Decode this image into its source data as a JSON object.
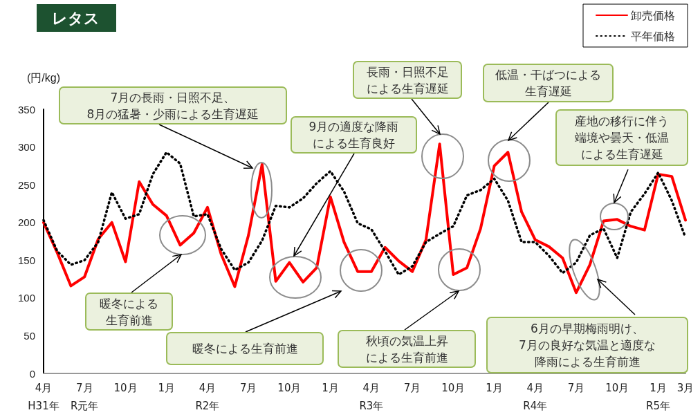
{
  "chart_data": {
    "type": "line",
    "title": "レタス",
    "ylabel": "(円/kg)",
    "categories": [
      "4月\nH31年",
      null,
      null,
      "7月\nR元年",
      null,
      null,
      "10月",
      null,
      null,
      "1月",
      null,
      null,
      "4月\nR2年",
      null,
      null,
      "7月",
      null,
      null,
      "10月",
      null,
      null,
      "1月",
      null,
      null,
      "4月\nR3年",
      null,
      null,
      "7月",
      null,
      null,
      "10月",
      null,
      null,
      "1月",
      null,
      null,
      "4月\nR4年",
      null,
      null,
      "7月",
      null,
      null,
      "10月",
      null,
      null,
      "1月\nR5年",
      null,
      "3月"
    ],
    "series": [
      {
        "name": "卸売価格",
        "color": "#ff0000",
        "line_style": "solid",
        "values": [
          200,
          160,
          116,
          128,
          178,
          200,
          148,
          254,
          224,
          209,
          170,
          186,
          220,
          158,
          115,
          183,
          277,
          122,
          147,
          121,
          140,
          234,
          174,
          135,
          135,
          167,
          149,
          135,
          177,
          304,
          131,
          140,
          192,
          275,
          293,
          214,
          177,
          168,
          153,
          107,
          144,
          202,
          204,
          195,
          190,
          264,
          261,
          203
        ]
      },
      {
        "name": "平年価格",
        "color": "#000000",
        "line_style": "dotted",
        "values": [
          203,
          162,
          144,
          150,
          174,
          240,
          205,
          211,
          264,
          293,
          278,
          208,
          211,
          165,
          137,
          147,
          176,
          222,
          220,
          232,
          252,
          268,
          241,
          199,
          191,
          162,
          131,
          142,
          174,
          185,
          195,
          236,
          243,
          258,
          229,
          174,
          174,
          156,
          133,
          147,
          183,
          192,
          153,
          214,
          238,
          266,
          229,
          180
        ]
      }
    ],
    "ylim": [
      0,
      350
    ],
    "yticks": [
      0,
      50,
      100,
      150,
      200,
      250,
      300,
      350
    ],
    "grid": false,
    "legend": "top right",
    "annotations": [
      "7月の長雨・日照不足、8月の猛暑・少雨による生育遅延",
      "9月の適度な降雨による生育良好",
      "長雨・日照不足による生育遅延",
      "低温・干ばつによる生育遅延",
      "産地の移行に伴う端境や曇天・低温による生育遅延",
      "暖冬による生育前進",
      "暖冬による生育前進",
      "秋頃の気温上昇による生育前進",
      "6月の早期梅雨明け、7月の良好な気温と適度な降雨による生育前進"
    ]
  }
}
